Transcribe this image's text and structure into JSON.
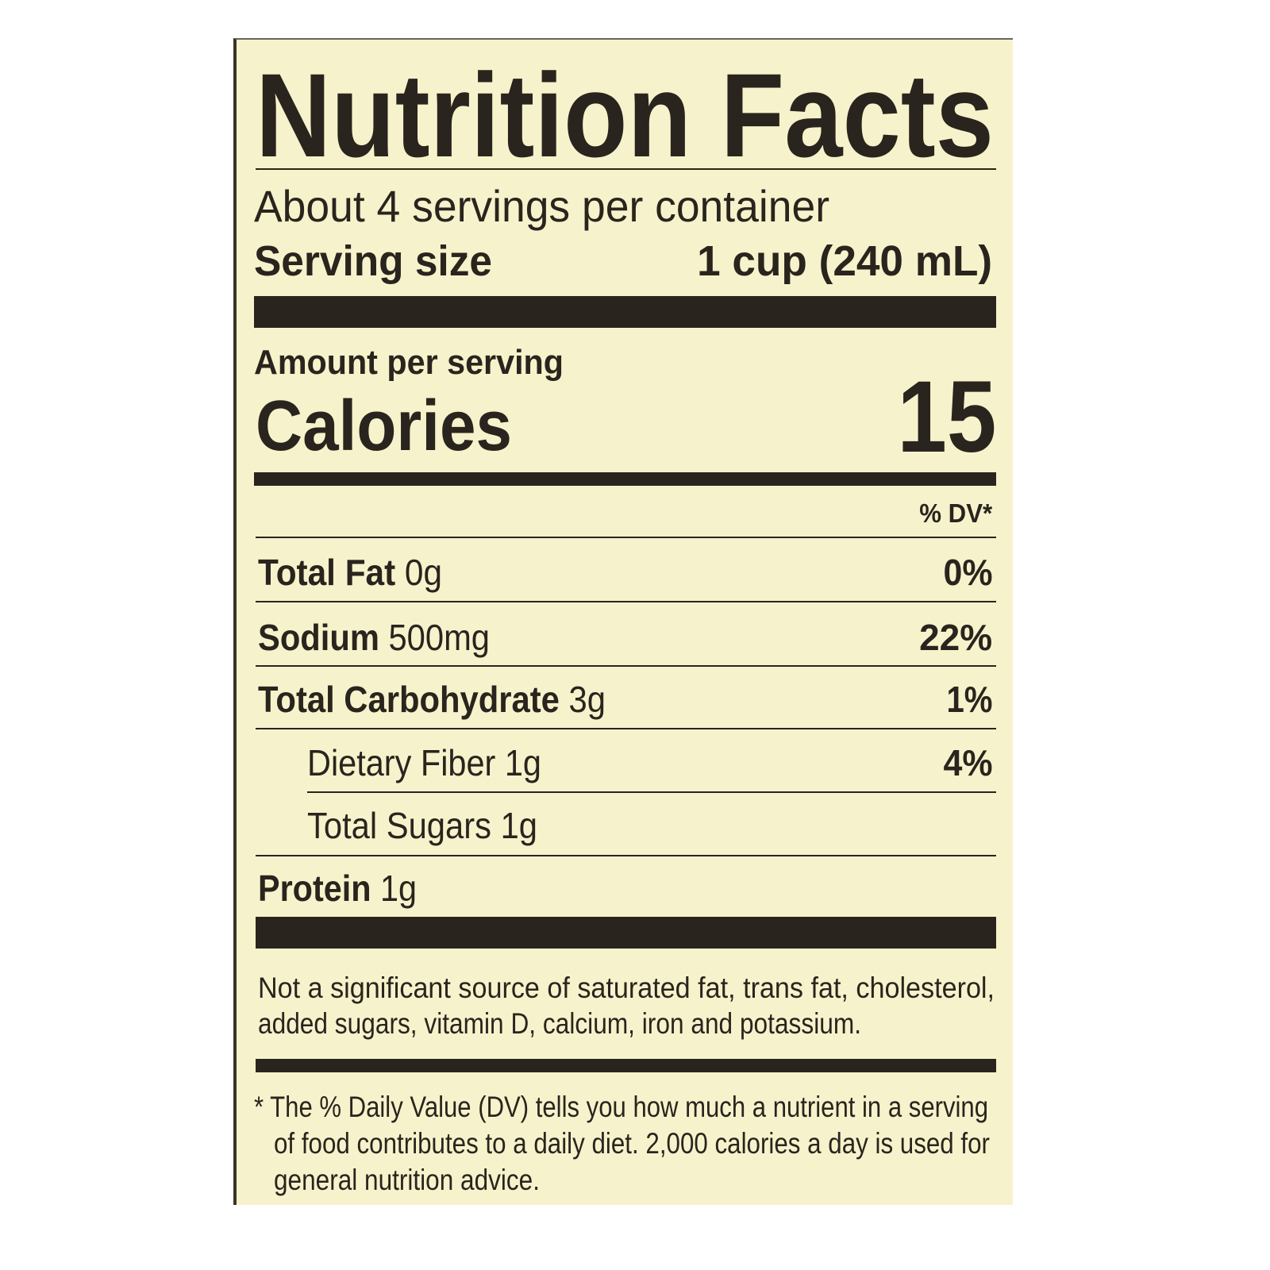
{
  "label": {
    "title": "Nutrition Facts",
    "servings_per_container": "About 4 servings per container",
    "serving_size_label": "Serving size",
    "serving_size_value": "1 cup (240 mL)",
    "amount_per_serving": "Amount per serving",
    "calories_label": "Calories",
    "calories_value": "15",
    "dv_header": "% DV*",
    "nutrients": [
      {
        "name": "Total Fat",
        "amount": "0g",
        "dv": "0%"
      },
      {
        "name": "Sodium",
        "amount": "500mg",
        "dv": "22%"
      },
      {
        "name": "Total Carbohydrate",
        "amount": "3g",
        "dv": "1%"
      },
      {
        "name": "Dietary Fiber 1g",
        "amount": "",
        "dv": "4%"
      },
      {
        "name": "Total Sugars 1g",
        "amount": "",
        "dv": ""
      },
      {
        "name": "Protein",
        "amount": "1g",
        "dv": ""
      }
    ],
    "not_significant_line1": "Not a significant source of saturated fat, trans fat, cholesterol,",
    "not_significant_line2": "added sugars, vitamin D, calcium, iron and potassium.",
    "footnote_line1": "* The % Daily Value (DV) tells you how much a nutrient in a serving",
    "footnote_line2": "of food contributes to a daily diet. 2,000 calories a day is used for",
    "footnote_line3": "general nutrition advice."
  },
  "colors": {
    "background": "#f6f3cc",
    "ink": "#2a241e"
  }
}
